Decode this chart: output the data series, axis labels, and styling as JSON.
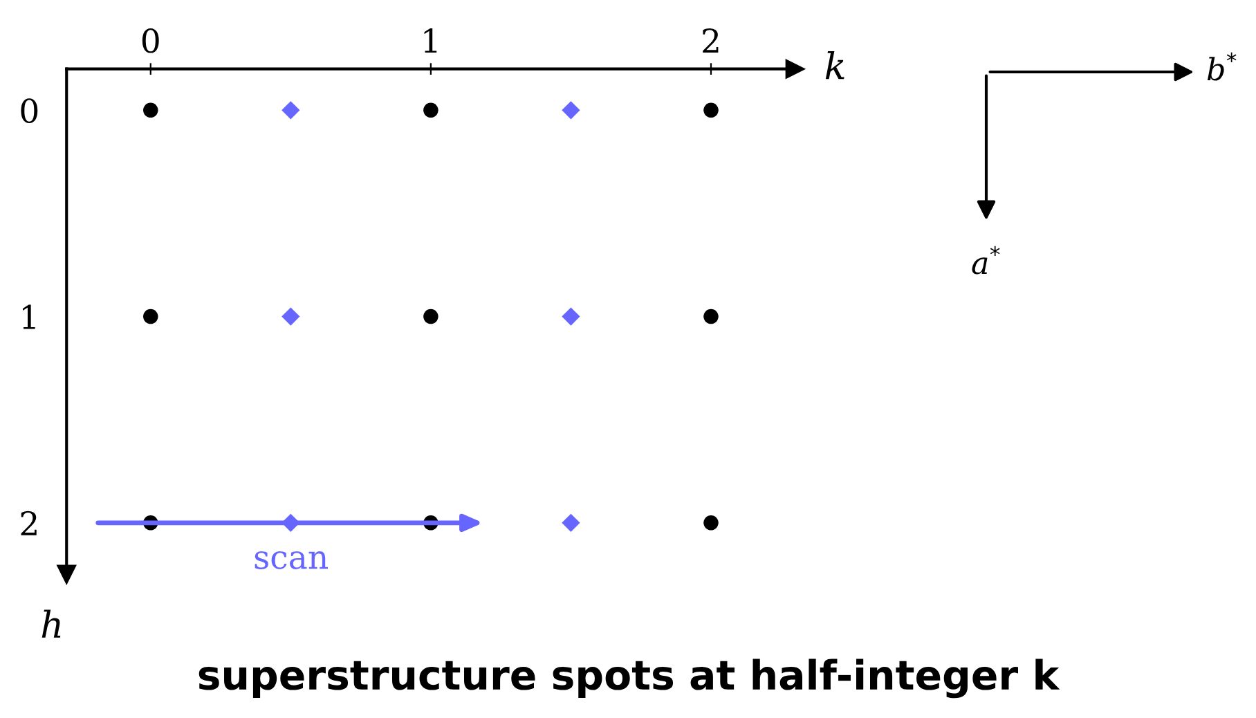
{
  "chart_data": {
    "type": "scatter",
    "title": "superstructure spots at half-integer k",
    "xlabel": "k",
    "ylabel": "h",
    "xlim": [
      -0.3,
      2.3
    ],
    "ylim": [
      2.25,
      -0.2
    ],
    "xticks": [
      0,
      1,
      2
    ],
    "yticks": [
      0,
      1,
      2
    ],
    "grid": false,
    "series": [
      {
        "color": "#000000",
        "marker": "circle",
        "x": [
          0,
          1,
          2,
          0,
          1,
          2,
          0,
          1,
          2
        ],
        "values": [
          0,
          0,
          0,
          1,
          1,
          1,
          2,
          2,
          2
        ]
      },
      {
        "color": "#6666ff",
        "marker": "diamond",
        "x": [
          0.5,
          1.5,
          0.5,
          1.5,
          0.5,
          1.5
        ],
        "values": [
          0,
          0,
          1,
          1,
          2,
          2
        ]
      }
    ],
    "annotations": [
      "scan",
      "b$^{*}$",
      "a$^{*}$"
    ]
  }
}
